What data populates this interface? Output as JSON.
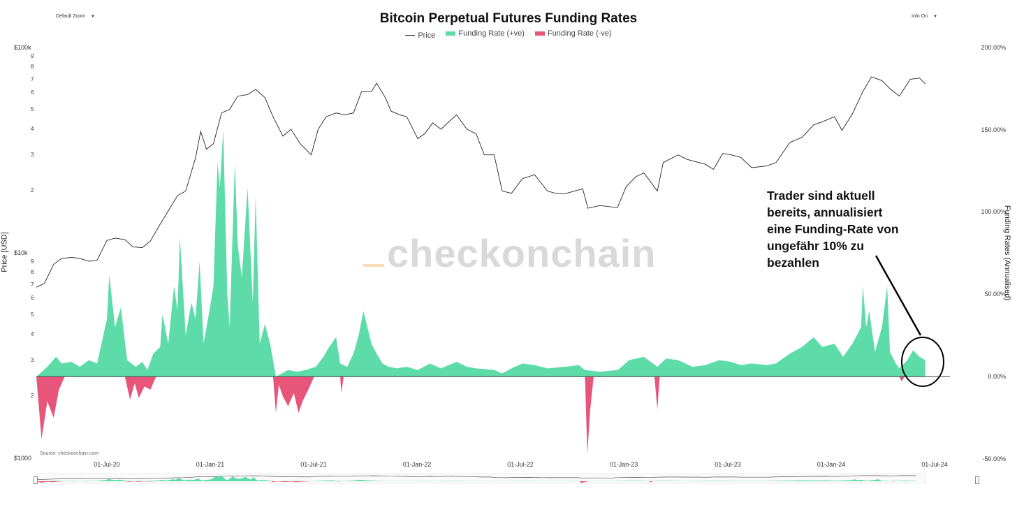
{
  "controls": {
    "zoom_label": "Default Zoom",
    "zoom_caret": "▼",
    "info_label": "Info On",
    "info_caret": "▼"
  },
  "legend": {
    "price": "Price",
    "positive": "Funding Rate (+ve)",
    "negative": "Funding Rate (-ve)"
  },
  "colors": {
    "price": "#222222",
    "positive": "#5ddba8",
    "negative": "#e8557a",
    "zero_line": "#444444"
  },
  "watermark": "checkonchain",
  "annotation": [
    "Trader sind aktuell",
    "bereits, annualisiert",
    "eine Funding-Rate von",
    "ungefähr 10% zu",
    "bezahlen"
  ],
  "source": "Source: checkonchain.com",
  "chart_data": {
    "type": "line",
    "title": "Bitcoin Perpetual Futures Funding Rates",
    "y_left": {
      "label": "Price [USD]",
      "scale": "log",
      "range": [
        1000,
        100000
      ],
      "major_ticks": [
        "$1000",
        "$10k",
        "$100k"
      ],
      "minor_ticks": [
        "2",
        "3",
        "4",
        "5",
        "6",
        "7",
        "8",
        "9"
      ]
    },
    "y_right": {
      "label": "Funding Rates (Annualised)",
      "range": [
        -50,
        200
      ],
      "ticks": [
        "-50.00%",
        "0.00%",
        "50.00%",
        "100.00%",
        "150.00%",
        "200.00%"
      ]
    },
    "x_ticks": [
      "01-Jul-20",
      "01-Jan-21",
      "01-Jul-21",
      "01-Jan-22",
      "01-Jul-22",
      "01-Jan-23",
      "01-Jul-23",
      "01-Jan-24",
      "01-Jul-24"
    ],
    "x_range": [
      "2020-04-01",
      "2024-07-01"
    ],
    "series": [
      {
        "name": "Price",
        "unit": "USD",
        "points": [
          [
            "2020-04-01",
            6800
          ],
          [
            "2020-04-15",
            7100
          ],
          [
            "2020-05-01",
            8800
          ],
          [
            "2020-05-15",
            9400
          ],
          [
            "2020-06-01",
            9500
          ],
          [
            "2020-06-15",
            9400
          ],
          [
            "2020-07-01",
            9100
          ],
          [
            "2020-07-15",
            9200
          ],
          [
            "2020-08-01",
            11500
          ],
          [
            "2020-08-15",
            11800
          ],
          [
            "2020-09-01",
            11600
          ],
          [
            "2020-09-15",
            10700
          ],
          [
            "2020-10-01",
            10600
          ],
          [
            "2020-10-15",
            11400
          ],
          [
            "2020-11-01",
            13800
          ],
          [
            "2020-11-15",
            16000
          ],
          [
            "2020-12-01",
            19000
          ],
          [
            "2020-12-15",
            20000
          ],
          [
            "2021-01-01",
            29000
          ],
          [
            "2021-01-10",
            39000
          ],
          [
            "2021-01-20",
            32000
          ],
          [
            "2021-02-01",
            34000
          ],
          [
            "2021-02-15",
            48000
          ],
          [
            "2021-03-01",
            50000
          ],
          [
            "2021-03-15",
            58000
          ],
          [
            "2021-04-01",
            59000
          ],
          [
            "2021-04-15",
            62500
          ],
          [
            "2021-05-01",
            57000
          ],
          [
            "2021-05-15",
            46000
          ],
          [
            "2021-06-01",
            37000
          ],
          [
            "2021-06-15",
            40000
          ],
          [
            "2021-07-01",
            34000
          ],
          [
            "2021-07-20",
            30000
          ],
          [
            "2021-08-01",
            40000
          ],
          [
            "2021-08-15",
            46000
          ],
          [
            "2021-09-01",
            48000
          ],
          [
            "2021-09-15",
            47000
          ],
          [
            "2021-10-01",
            48000
          ],
          [
            "2021-10-15",
            61000
          ],
          [
            "2021-11-01",
            61000
          ],
          [
            "2021-11-10",
            67000
          ],
          [
            "2021-11-25",
            57000
          ],
          [
            "2021-12-05",
            49000
          ],
          [
            "2021-12-20",
            47000
          ],
          [
            "2022-01-01",
            46000
          ],
          [
            "2022-01-20",
            36000
          ],
          [
            "2022-02-01",
            38000
          ],
          [
            "2022-02-15",
            43000
          ],
          [
            "2022-03-01",
            40000
          ],
          [
            "2022-03-28",
            47000
          ],
          [
            "2022-04-15",
            40000
          ],
          [
            "2022-05-01",
            38000
          ],
          [
            "2022-05-15",
            30000
          ],
          [
            "2022-06-01",
            30000
          ],
          [
            "2022-06-15",
            20000
          ],
          [
            "2022-07-01",
            19500
          ],
          [
            "2022-07-20",
            23000
          ],
          [
            "2022-08-10",
            24000
          ],
          [
            "2022-09-01",
            20000
          ],
          [
            "2022-09-15",
            19500
          ],
          [
            "2022-10-01",
            19400
          ],
          [
            "2022-11-01",
            20500
          ],
          [
            "2022-11-10",
            16500
          ],
          [
            "2022-12-01",
            17000
          ],
          [
            "2022-12-31",
            16600
          ],
          [
            "2023-01-15",
            21000
          ],
          [
            "2023-02-01",
            23500
          ],
          [
            "2023-02-15",
            24500
          ],
          [
            "2023-03-10",
            20000
          ],
          [
            "2023-03-20",
            27500
          ],
          [
            "2023-04-15",
            30000
          ],
          [
            "2023-05-01",
            28500
          ],
          [
            "2023-06-01",
            27000
          ],
          [
            "2023-06-15",
            25500
          ],
          [
            "2023-07-01",
            30500
          ],
          [
            "2023-07-15",
            30000
          ],
          [
            "2023-08-01",
            29200
          ],
          [
            "2023-08-20",
            26000
          ],
          [
            "2023-09-15",
            26500
          ],
          [
            "2023-10-01",
            27500
          ],
          [
            "2023-10-25",
            34500
          ],
          [
            "2023-11-15",
            36500
          ],
          [
            "2023-12-05",
            42000
          ],
          [
            "2023-12-20",
            43500
          ],
          [
            "2024-01-10",
            46000
          ],
          [
            "2024-01-23",
            39500
          ],
          [
            "2024-02-10",
            47500
          ],
          [
            "2024-02-28",
            61000
          ],
          [
            "2024-03-14",
            72000
          ],
          [
            "2024-04-01",
            69000
          ],
          [
            "2024-04-15",
            63000
          ],
          [
            "2024-05-01",
            58000
          ],
          [
            "2024-05-20",
            70000
          ],
          [
            "2024-06-05",
            71000
          ],
          [
            "2024-06-15",
            66500
          ]
        ]
      },
      {
        "name": "Funding Rate (+ve)",
        "unit": "% annualised",
        "points": [
          [
            "2020-04-01",
            0
          ],
          [
            "2020-04-20",
            6
          ],
          [
            "2020-05-05",
            12
          ],
          [
            "2020-05-15",
            8
          ],
          [
            "2020-06-01",
            9
          ],
          [
            "2020-06-15",
            6
          ],
          [
            "2020-07-01",
            10
          ],
          [
            "2020-07-15",
            8
          ],
          [
            "2020-08-01",
            35
          ],
          [
            "2020-08-05",
            62
          ],
          [
            "2020-08-15",
            30
          ],
          [
            "2020-08-25",
            42
          ],
          [
            "2020-09-05",
            10
          ],
          [
            "2020-09-20",
            6
          ],
          [
            "2020-10-01",
            9
          ],
          [
            "2020-10-10",
            4
          ],
          [
            "2020-10-20",
            14
          ],
          [
            "2020-11-01",
            18
          ],
          [
            "2020-11-05",
            38
          ],
          [
            "2020-11-15",
            20
          ],
          [
            "2020-11-25",
            55
          ],
          [
            "2020-12-01",
            40
          ],
          [
            "2020-12-05",
            85
          ],
          [
            "2020-12-15",
            25
          ],
          [
            "2020-12-25",
            45
          ],
          [
            "2021-01-01",
            35
          ],
          [
            "2021-01-08",
            70
          ],
          [
            "2021-01-15",
            20
          ],
          [
            "2021-01-25",
            40
          ],
          [
            "2021-02-01",
            55
          ],
          [
            "2021-02-08",
            130
          ],
          [
            "2021-02-12",
            115
          ],
          [
            "2021-02-18",
            150
          ],
          [
            "2021-02-25",
            50
          ],
          [
            "2021-03-01",
            30
          ],
          [
            "2021-03-10",
            130
          ],
          [
            "2021-03-15",
            80
          ],
          [
            "2021-03-22",
            60
          ],
          [
            "2021-04-01",
            115
          ],
          [
            "2021-04-10",
            45
          ],
          [
            "2021-04-15",
            110
          ],
          [
            "2021-04-22",
            20
          ],
          [
            "2021-05-01",
            32
          ],
          [
            "2021-05-10",
            20
          ],
          [
            "2021-05-20",
            0
          ],
          [
            "2021-06-10",
            4
          ],
          [
            "2021-06-25",
            3
          ],
          [
            "2021-07-10",
            4
          ],
          [
            "2021-07-28",
            6
          ],
          [
            "2021-08-10",
            12
          ],
          [
            "2021-08-20",
            18
          ],
          [
            "2021-09-01",
            24
          ],
          [
            "2021-09-08",
            8
          ],
          [
            "2021-09-20",
            6
          ],
          [
            "2021-10-01",
            14
          ],
          [
            "2021-10-10",
            25
          ],
          [
            "2021-10-18",
            40
          ],
          [
            "2021-10-25",
            30
          ],
          [
            "2021-11-01",
            20
          ],
          [
            "2021-11-10",
            14
          ],
          [
            "2021-11-20",
            8
          ],
          [
            "2021-12-01",
            6
          ],
          [
            "2021-12-15",
            5
          ],
          [
            "2022-01-01",
            6
          ],
          [
            "2022-01-20",
            4
          ],
          [
            "2022-02-10",
            8
          ],
          [
            "2022-03-01",
            5
          ],
          [
            "2022-03-28",
            9
          ],
          [
            "2022-04-15",
            6
          ],
          [
            "2022-05-01",
            5
          ],
          [
            "2022-06-01",
            4
          ],
          [
            "2022-06-15",
            2
          ],
          [
            "2022-07-01",
            5
          ],
          [
            "2022-07-20",
            8
          ],
          [
            "2022-08-10",
            7
          ],
          [
            "2022-09-01",
            5
          ],
          [
            "2022-10-01",
            6
          ],
          [
            "2022-10-25",
            7
          ],
          [
            "2022-11-05",
            4
          ],
          [
            "2022-12-01",
            3
          ],
          [
            "2023-01-01",
            4
          ],
          [
            "2023-01-20",
            10
          ],
          [
            "2023-02-15",
            12
          ],
          [
            "2023-03-10",
            6
          ],
          [
            "2023-03-25",
            11
          ],
          [
            "2023-04-15",
            10
          ],
          [
            "2023-05-10",
            6
          ],
          [
            "2023-06-01",
            7
          ],
          [
            "2023-06-25",
            10
          ],
          [
            "2023-07-15",
            9
          ],
          [
            "2023-08-01",
            7
          ],
          [
            "2023-08-20",
            8
          ],
          [
            "2023-09-15",
            7
          ],
          [
            "2023-10-01",
            8
          ],
          [
            "2023-10-25",
            14
          ],
          [
            "2023-11-15",
            18
          ],
          [
            "2023-12-05",
            24
          ],
          [
            "2023-12-20",
            18
          ],
          [
            "2024-01-10",
            20
          ],
          [
            "2024-01-25",
            12
          ],
          [
            "2024-02-10",
            20
          ],
          [
            "2024-02-25",
            30
          ],
          [
            "2024-02-28",
            55
          ],
          [
            "2024-03-05",
            30
          ],
          [
            "2024-03-10",
            40
          ],
          [
            "2024-03-20",
            15
          ],
          [
            "2024-04-01",
            30
          ],
          [
            "2024-04-10",
            55
          ],
          [
            "2024-04-15",
            15
          ],
          [
            "2024-04-25",
            8
          ],
          [
            "2024-05-01",
            5
          ],
          [
            "2024-05-15",
            10
          ],
          [
            "2024-05-25",
            16
          ],
          [
            "2024-06-05",
            12
          ],
          [
            "2024-06-15",
            10
          ]
        ]
      },
      {
        "name": "Funding Rate (-ve)",
        "unit": "% annualised",
        "points": [
          [
            "2020-04-01",
            0
          ],
          [
            "2020-04-10",
            -38
          ],
          [
            "2020-04-20",
            -15
          ],
          [
            "2020-05-01",
            -25
          ],
          [
            "2020-05-10",
            -8
          ],
          [
            "2020-05-20",
            0
          ],
          [
            "2020-09-01",
            0
          ],
          [
            "2020-09-10",
            -14
          ],
          [
            "2020-09-18",
            -4
          ],
          [
            "2020-09-25",
            -13
          ],
          [
            "2020-10-05",
            -6
          ],
          [
            "2020-10-15",
            -8
          ],
          [
            "2020-10-25",
            0
          ],
          [
            "2021-05-15",
            0
          ],
          [
            "2021-05-20",
            -22
          ],
          [
            "2021-05-25",
            -5
          ],
          [
            "2021-06-01",
            -12
          ],
          [
            "2021-06-10",
            -18
          ],
          [
            "2021-06-20",
            -10
          ],
          [
            "2021-06-28",
            -22
          ],
          [
            "2021-07-05",
            -15
          ],
          [
            "2021-07-15",
            -8
          ],
          [
            "2021-07-25",
            0
          ],
          [
            "2021-09-08",
            0
          ],
          [
            "2021-09-10",
            -10
          ],
          [
            "2021-09-14",
            0
          ],
          [
            "2022-11-05",
            0
          ],
          [
            "2022-11-09",
            -47
          ],
          [
            "2022-11-14",
            -20
          ],
          [
            "2022-11-20",
            0
          ],
          [
            "2023-03-05",
            0
          ],
          [
            "2023-03-10",
            -20
          ],
          [
            "2023-03-14",
            0
          ],
          [
            "2024-05-01",
            0
          ],
          [
            "2024-05-05",
            -3
          ],
          [
            "2024-05-10",
            0
          ]
        ]
      }
    ],
    "grid": false,
    "legend_position": "top-center"
  }
}
